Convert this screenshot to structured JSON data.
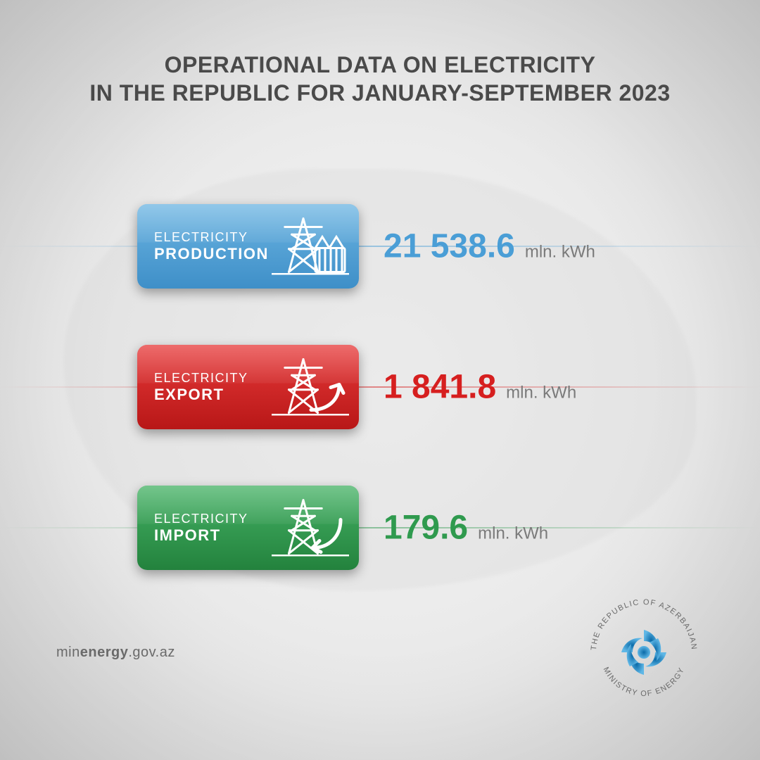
{
  "title": {
    "line1": "OPERATIONAL DATA ON ELECTRICITY",
    "line2": "IN THE REPUBLIC FOR JANUARY-SEPTEMBER 2023",
    "color": "#4a4a4a",
    "fontsize": 32
  },
  "unit": "mln. kWh",
  "unit_color": "#7a7a7a",
  "unit_fontsize": 24,
  "value_fontsize": 48,
  "card_label_fontsize_small": 18,
  "card_label_fontsize_big": 22,
  "rows": [
    {
      "label_top": "ELECTRICITY",
      "label_bottom": "PRODUCTION",
      "value": "21 538.6",
      "color": "#4a9ed6",
      "card_gradient_top": "#6db5e2",
      "card_gradient_bottom": "#3e8fc8",
      "line_color": "#4a9ed6",
      "icon": "production"
    },
    {
      "label_top": "ELECTRICITY",
      "label_bottom": "EXPORT",
      "value": "1 841.8",
      "color": "#d61f1f",
      "card_gradient_top": "#e73a3a",
      "card_gradient_bottom": "#b81717",
      "line_color": "#d61f1f",
      "icon": "export"
    },
    {
      "label_top": "ELECTRICITY",
      "label_bottom": "IMPORT",
      "value": "179.6",
      "color": "#2f9a4e",
      "card_gradient_top": "#45b265",
      "card_gradient_bottom": "#23823d",
      "line_color": "#2f9a4e",
      "icon": "import"
    }
  ],
  "emblem": {
    "ring_top": "THE REPUBLIC OF AZERBAIJAN",
    "ring_bottom": "MINISTRY OF ENERGY",
    "ring_color": "#6a6a6a",
    "ring_fontsize": 11,
    "swirl_color_outer": "#5fb7e6",
    "swirl_color_inner": "#0a6aa8"
  },
  "source": {
    "pre": "min",
    "bold": "energy",
    "post": ".gov.az",
    "color": "#6a6a6a",
    "fontsize": 20
  },
  "background_color": "#ebebeb"
}
